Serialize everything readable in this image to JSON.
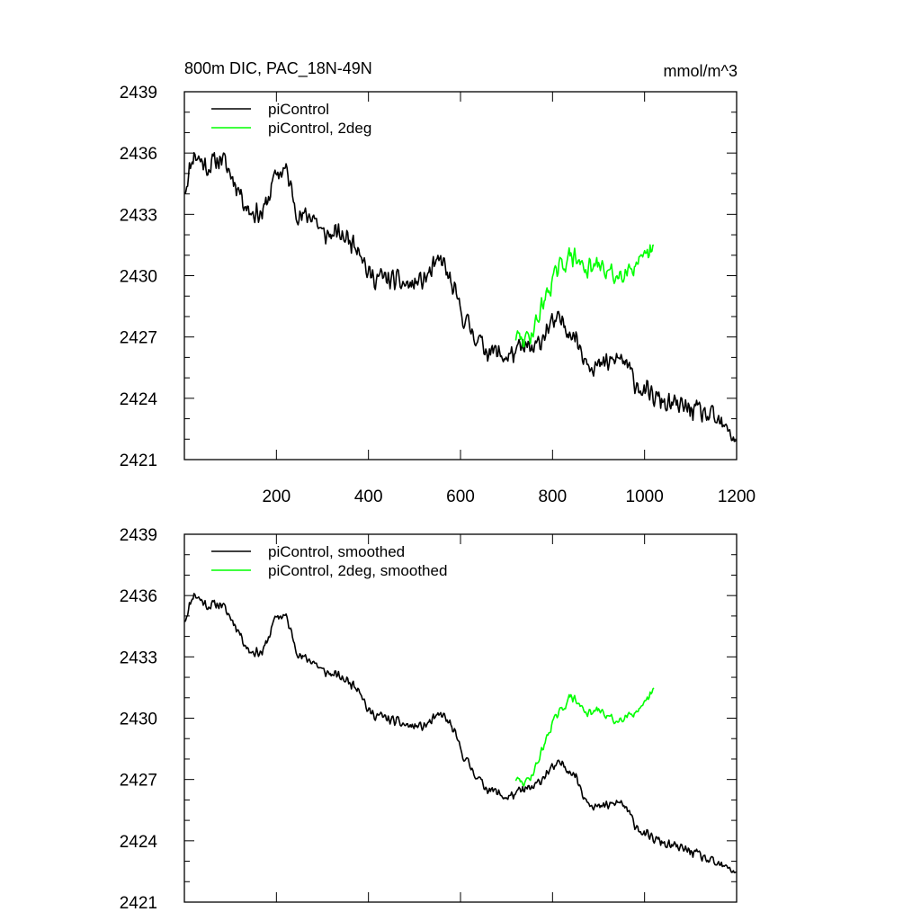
{
  "figure": {
    "title_left": "800m DIC, PAC_18N-49N",
    "title_right": "mmol/m^3"
  },
  "chart_data": [
    {
      "type": "line",
      "x_ticks": [
        200,
        400,
        600,
        800,
        1000,
        1200
      ],
      "y_ticks": [
        2421,
        2424,
        2427,
        2430,
        2433,
        2436,
        2439
      ],
      "xlim": [
        0,
        1200
      ],
      "ylim": [
        2421,
        2439
      ],
      "x_tick_labels_visible": true,
      "legend_position": "top-left",
      "series": [
        {
          "name": "piControl",
          "color": "#000000",
          "noise": 0.65,
          "seed": 11,
          "anchors": [
            [
              1,
              2434.2
            ],
            [
              20,
              2436.0
            ],
            [
              50,
              2435.3
            ],
            [
              80,
              2435.8
            ],
            [
              110,
              2434.6
            ],
            [
              140,
              2433.2
            ],
            [
              170,
              2433.0
            ],
            [
              200,
              2435.0
            ],
            [
              220,
              2435.2
            ],
            [
              250,
              2432.8
            ],
            [
              280,
              2433.0
            ],
            [
              300,
              2432.0
            ],
            [
              340,
              2432.0
            ],
            [
              380,
              2431.5
            ],
            [
              400,
              2430.0
            ],
            [
              450,
              2429.8
            ],
            [
              490,
              2429.5
            ],
            [
              520,
              2429.8
            ],
            [
              560,
              2430.8
            ],
            [
              580,
              2429.5
            ],
            [
              610,
              2427.8
            ],
            [
              650,
              2426.5
            ],
            [
              700,
              2426.0
            ],
            [
              740,
              2426.5
            ],
            [
              760,
              2426.3
            ],
            [
              790,
              2427.5
            ],
            [
              820,
              2427.8
            ],
            [
              850,
              2427.0
            ],
            [
              870,
              2426.0
            ],
            [
              900,
              2425.5
            ],
            [
              950,
              2426.0
            ],
            [
              980,
              2424.8
            ],
            [
              1000,
              2424.3
            ],
            [
              1050,
              2423.7
            ],
            [
              1100,
              2423.5
            ],
            [
              1150,
              2423.0
            ],
            [
              1200,
              2422.0
            ]
          ]
        },
        {
          "name": "piControl, 2deg",
          "color": "#00ff00",
          "noise": 0.6,
          "seed": 29,
          "anchors": [
            [
              720,
              2427.0
            ],
            [
              740,
              2426.8
            ],
            [
              760,
              2427.4
            ],
            [
              780,
              2428.7
            ],
            [
              800,
              2429.8
            ],
            [
              820,
              2430.5
            ],
            [
              840,
              2431.0
            ],
            [
              860,
              2430.6
            ],
            [
              880,
              2430.3
            ],
            [
              900,
              2430.5
            ],
            [
              940,
              2429.9
            ],
            [
              960,
              2430.4
            ],
            [
              990,
              2430.5
            ],
            [
              1020,
              2431.3
            ]
          ]
        }
      ]
    },
    {
      "type": "line",
      "x_ticks": [
        200,
        400,
        600,
        800,
        1000,
        1200
      ],
      "y_ticks": [
        2421,
        2424,
        2427,
        2430,
        2433,
        2436,
        2439
      ],
      "xlim": [
        0,
        1200
      ],
      "ylim": [
        2421,
        2439
      ],
      "x_tick_labels_visible": false,
      "legend_position": "top-left",
      "series": [
        {
          "name": "piControl, smoothed",
          "color": "#000000",
          "noise": 0.3,
          "seed": 11,
          "anchors": [
            [
              1,
              2434.8
            ],
            [
              20,
              2436.1
            ],
            [
              50,
              2435.5
            ],
            [
              80,
              2435.6
            ],
            [
              110,
              2434.6
            ],
            [
              140,
              2433.3
            ],
            [
              170,
              2433.2
            ],
            [
              200,
              2435.0
            ],
            [
              220,
              2435.0
            ],
            [
              250,
              2433.0
            ],
            [
              280,
              2432.8
            ],
            [
              300,
              2432.3
            ],
            [
              340,
              2432.0
            ],
            [
              380,
              2431.5
            ],
            [
              400,
              2430.3
            ],
            [
              450,
              2429.9
            ],
            [
              490,
              2429.6
            ],
            [
              520,
              2429.6
            ],
            [
              560,
              2430.2
            ],
            [
              580,
              2429.6
            ],
            [
              610,
              2428.0
            ],
            [
              650,
              2426.7
            ],
            [
              700,
              2426.1
            ],
            [
              740,
              2426.5
            ],
            [
              760,
              2426.6
            ],
            [
              790,
              2427.4
            ],
            [
              820,
              2427.8
            ],
            [
              850,
              2427.2
            ],
            [
              870,
              2426.1
            ],
            [
              900,
              2425.6
            ],
            [
              950,
              2425.9
            ],
            [
              980,
              2424.8
            ],
            [
              1000,
              2424.3
            ],
            [
              1050,
              2423.8
            ],
            [
              1100,
              2423.5
            ],
            [
              1150,
              2422.9
            ],
            [
              1200,
              2422.5
            ]
          ]
        },
        {
          "name": "piControl, 2deg, smoothed",
          "color": "#00ff00",
          "noise": 0.25,
          "seed": 29,
          "anchors": [
            [
              720,
              2427.0
            ],
            [
              740,
              2426.8
            ],
            [
              760,
              2427.4
            ],
            [
              780,
              2428.6
            ],
            [
              800,
              2429.8
            ],
            [
              820,
              2430.4
            ],
            [
              840,
              2431.1
            ],
            [
              860,
              2430.6
            ],
            [
              880,
              2430.2
            ],
            [
              900,
              2430.4
            ],
            [
              940,
              2429.8
            ],
            [
              960,
              2430.2
            ],
            [
              990,
              2430.3
            ],
            [
              1020,
              2431.4
            ]
          ]
        }
      ]
    }
  ]
}
